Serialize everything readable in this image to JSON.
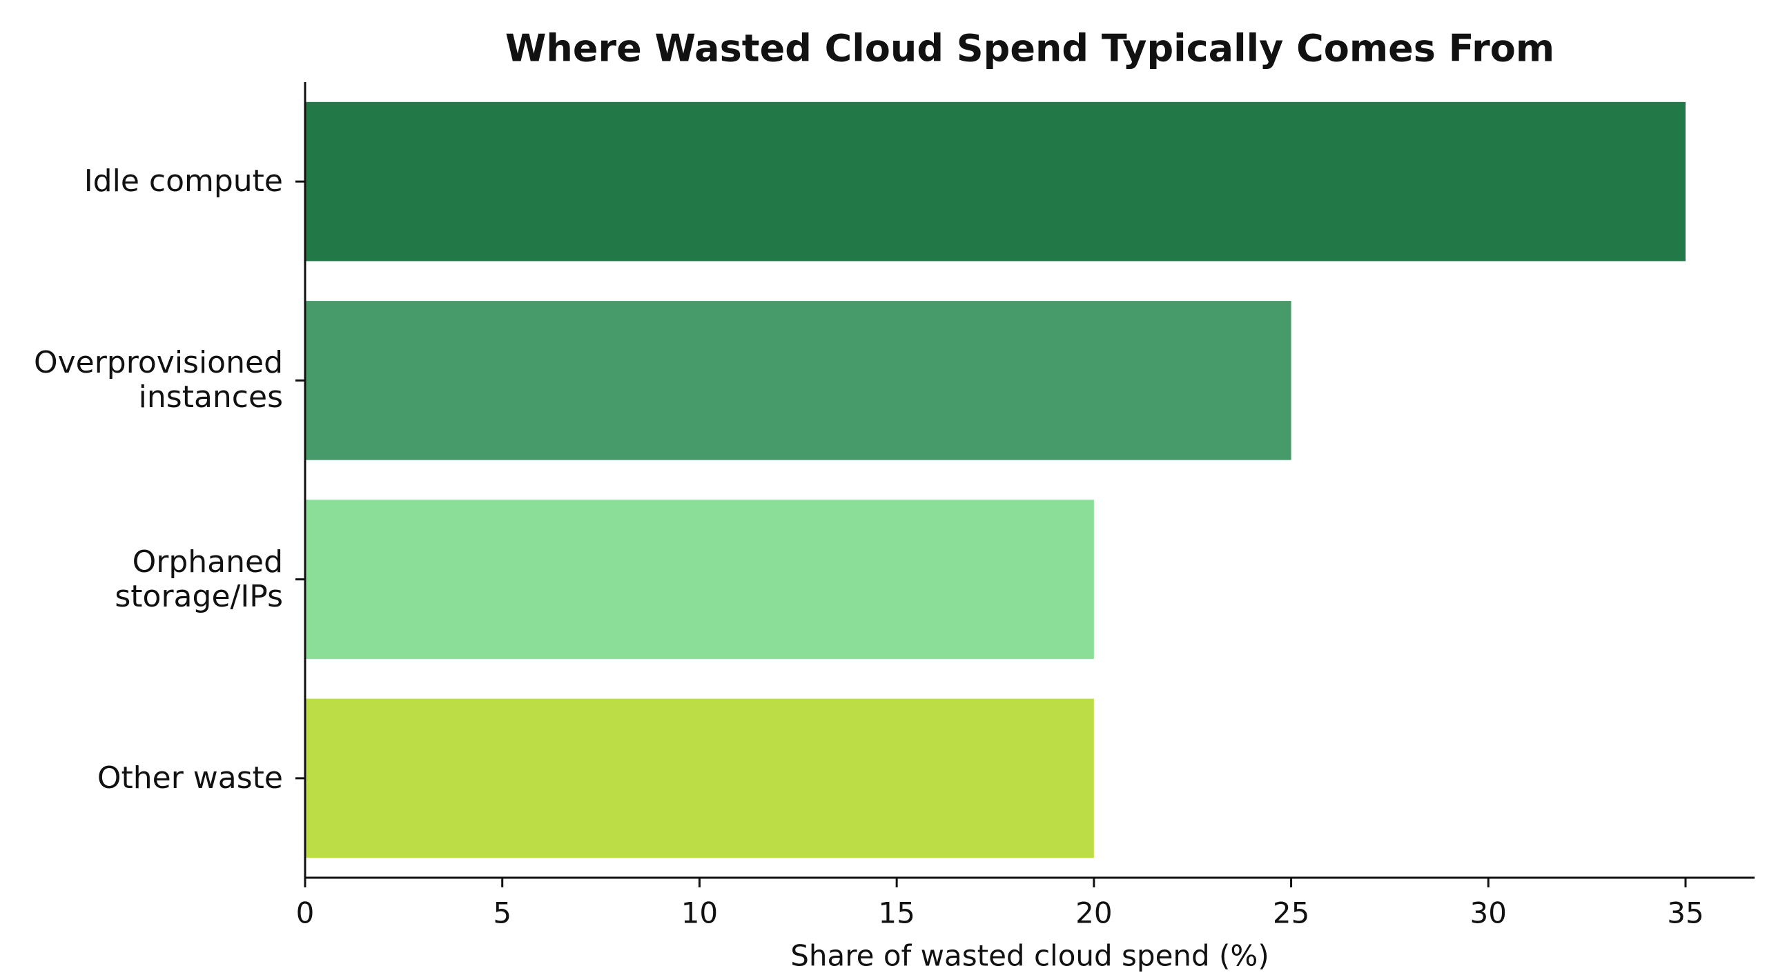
{
  "chart_data": {
    "type": "barh",
    "title": "Where Wasted Cloud Spend Typically Comes From",
    "x_label": "Share of wasted cloud spend (%)",
    "categories": [
      "Idle compute",
      "Overprovisioned\ninstances",
      "Orphaned\nstorage/IPs",
      "Other waste"
    ],
    "values": [
      35,
      25,
      20,
      20
    ],
    "colors": [
      "#227846",
      "#479a6a",
      "#8ade98",
      "#bcdd45"
    ],
    "xlim": [
      0,
      36.75
    ],
    "xticks": [
      0,
      5,
      10,
      15,
      20,
      25,
      30,
      35
    ]
  }
}
